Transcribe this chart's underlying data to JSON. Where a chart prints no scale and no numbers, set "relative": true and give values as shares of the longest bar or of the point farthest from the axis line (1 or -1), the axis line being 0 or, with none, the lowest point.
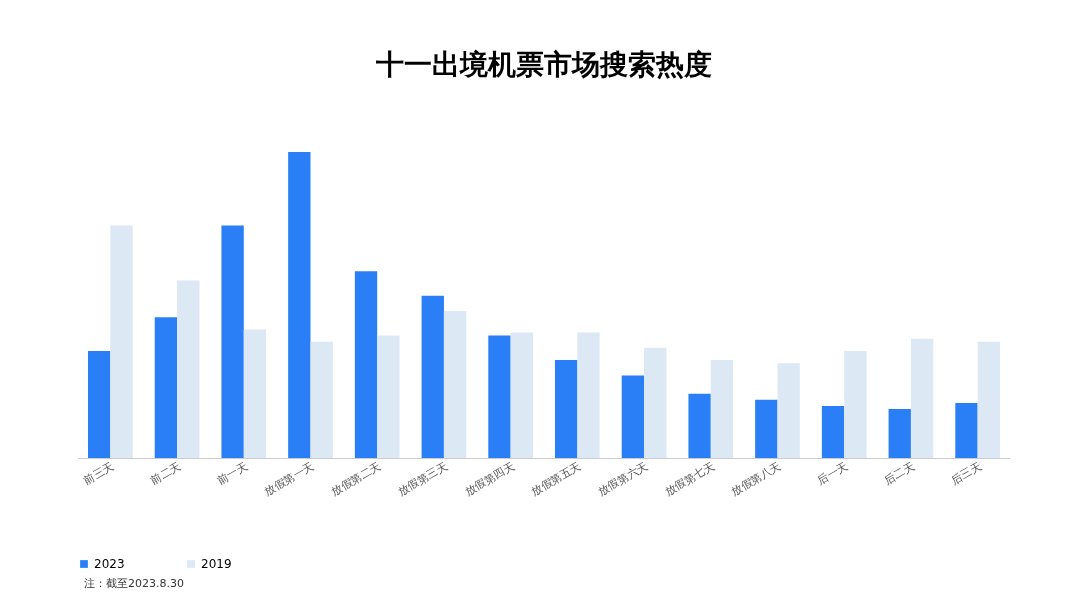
{
  "chart_data": {
    "type": "bar",
    "title": "十一出境机票市场搜索热度",
    "relative": true,
    "legend": "bottom",
    "grid": false,
    "categories": [
      "前三天",
      "前二天",
      "前一天",
      "放假第一天",
      "放假第二天",
      "放假第三天",
      "放假第四天",
      "放假第五天",
      "放假第六天",
      "放假第七天",
      "放假第八天",
      "后一天",
      "后二天",
      "后三天"
    ],
    "series": [
      {
        "name": "2023",
        "color": "#2a7ff7",
        "values": [
          0.35,
          0.46,
          0.76,
          1,
          0.61,
          0.53,
          0.4,
          0.32,
          0.27,
          0.21,
          0.19,
          0.17,
          0.16,
          0.18
        ]
      },
      {
        "name": "2019",
        "color": "#dde8f5",
        "values": [
          0.76,
          0.58,
          0.42,
          0.38,
          0.4,
          0.48,
          0.41,
          0.41,
          0.36,
          0.32,
          0.31,
          0.35,
          0.39,
          0.38
        ]
      }
    ],
    "annotations": [
      "注：截至2023.8.30"
    ]
  }
}
